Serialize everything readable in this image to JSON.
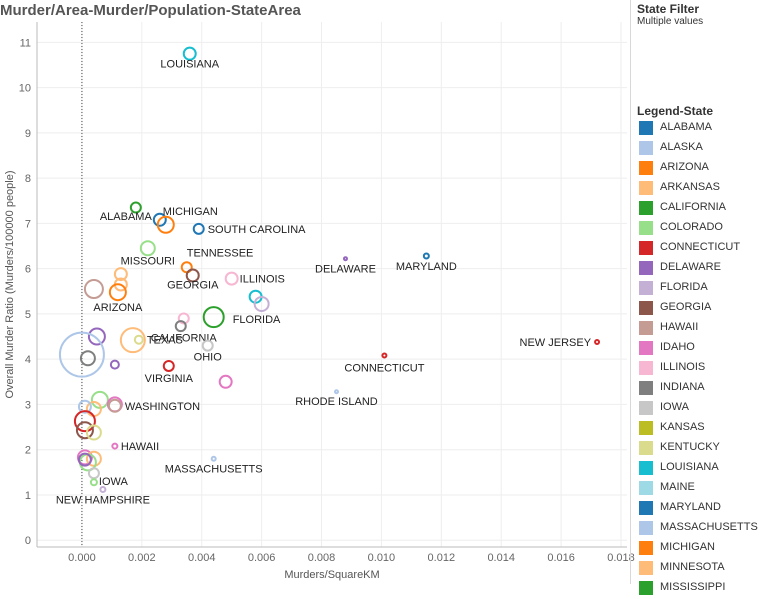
{
  "title": "Murder/Area-Murder/Population-StateArea",
  "filter": {
    "title": "State Filter",
    "value": "Multiple values"
  },
  "legend": {
    "title": "Legend-State",
    "items": [
      {
        "label": "ALABAMA",
        "color": "#1f77b4"
      },
      {
        "label": "ALASKA",
        "color": "#aec7e8"
      },
      {
        "label": "ARIZONA",
        "color": "#ff7f0e"
      },
      {
        "label": "ARKANSAS",
        "color": "#ffbb78"
      },
      {
        "label": "CALIFORNIA",
        "color": "#2ca02c"
      },
      {
        "label": "COLORADO",
        "color": "#98df8a"
      },
      {
        "label": "CONNECTICUT",
        "color": "#d62728"
      },
      {
        "label": "DELAWARE",
        "color": "#9467bd"
      },
      {
        "label": "FLORIDA",
        "color": "#c5b0d5"
      },
      {
        "label": "GEORGIA",
        "color": "#8c564b"
      },
      {
        "label": "HAWAII",
        "color": "#c49c94"
      },
      {
        "label": "IDAHO",
        "color": "#e377c2"
      },
      {
        "label": "ILLINOIS",
        "color": "#f7b6d2"
      },
      {
        "label": "INDIANA",
        "color": "#7f7f7f"
      },
      {
        "label": "IOWA",
        "color": "#c7c7c7"
      },
      {
        "label": "KANSAS",
        "color": "#bcbd22"
      },
      {
        "label": "KENTUCKY",
        "color": "#dbdb8d"
      },
      {
        "label": "LOUISIANA",
        "color": "#17becf"
      },
      {
        "label": "MAINE",
        "color": "#9edae5"
      },
      {
        "label": "MARYLAND",
        "color": "#1f77b4"
      },
      {
        "label": "MASSACHUSETTS",
        "color": "#aec7e8"
      },
      {
        "label": "MICHIGAN",
        "color": "#ff7f0e"
      },
      {
        "label": "MINNESOTA",
        "color": "#ffbb78"
      },
      {
        "label": "MISSISSIPPI",
        "color": "#2ca02c"
      }
    ]
  },
  "chart_data": {
    "type": "scatter",
    "title": "Murder/Area-Murder/Population-StateArea",
    "xlabel": "Murders/SquareKM",
    "ylabel": "Overall Murder Ratio (Murders/100000 people)",
    "xlim": [
      -0.0015,
      0.0182
    ],
    "ylim": [
      -0.15,
      11.45
    ],
    "xticks": [
      "0.000",
      "0.002",
      "0.004",
      "0.006",
      "0.008",
      "0.010",
      "0.012",
      "0.014",
      "0.016",
      "0.018"
    ],
    "xtick_values": [
      0,
      0.002,
      0.004,
      0.006,
      0.008,
      0.01,
      0.012,
      0.014,
      0.016,
      0.018
    ],
    "yticks": [
      "0",
      "1",
      "2",
      "3",
      "4",
      "5",
      "6",
      "7",
      "8",
      "9",
      "10",
      "11"
    ],
    "ytick_values": [
      0,
      1,
      2,
      3,
      4,
      5,
      6,
      7,
      8,
      9,
      10,
      11
    ],
    "grid": true,
    "reference_line_x": 0,
    "legend_position": "right",
    "points": [
      {
        "x": 0.0036,
        "y": 10.75,
        "size": 6,
        "color": "#17becf",
        "label": "LOUISIANA"
      },
      {
        "x": 0.0018,
        "y": 7.35,
        "size": 5,
        "color": "#2ca02c",
        "label": ""
      },
      {
        "x": 0.0026,
        "y": 7.08,
        "size": 6,
        "color": "#1f77b4",
        "label": "ALABAMA"
      },
      {
        "x": 0.0028,
        "y": 6.97,
        "size": 8,
        "color": "#ff7f0e",
        "label": "MICHIGAN"
      },
      {
        "x": 0.0039,
        "y": 6.88,
        "size": 5,
        "color": "#1f77b4",
        "label": "SOUTH CAROLINA"
      },
      {
        "x": 0.0022,
        "y": 6.45,
        "size": 7,
        "color": "#98df8a",
        "label": "MISSOURI"
      },
      {
        "x": 0.0035,
        "y": 6.03,
        "size": 5,
        "color": "#ff7f0e",
        "label": "TENNESSEE"
      },
      {
        "x": 0.0037,
        "y": 5.85,
        "size": 6,
        "color": "#8c564b",
        "label": "GEORGIA"
      },
      {
        "x": 0.005,
        "y": 5.78,
        "size": 6,
        "color": "#f7b6d2",
        "label": "ILLINOIS"
      },
      {
        "x": 0.0088,
        "y": 6.22,
        "size": 1.5,
        "color": "#9467bd",
        "label": "DELAWARE"
      },
      {
        "x": 0.0115,
        "y": 6.28,
        "size": 2.5,
        "color": "#1f77b4",
        "label": "MARYLAND"
      },
      {
        "x": 0.0013,
        "y": 5.88,
        "size": 6,
        "color": "#ffbb78",
        "label": ""
      },
      {
        "x": 0.0013,
        "y": 5.65,
        "size": 6,
        "color": "#ffbb78",
        "label": ""
      },
      {
        "x": 0.0012,
        "y": 5.48,
        "size": 8,
        "color": "#ff7f0e",
        "label": "ARIZONA"
      },
      {
        "x": 0.0004,
        "y": 5.55,
        "size": 9,
        "color": "#c49c94",
        "label": ""
      },
      {
        "x": 0.0058,
        "y": 5.38,
        "size": 6,
        "color": "#17becf",
        "label": ""
      },
      {
        "x": 0.006,
        "y": 5.22,
        "size": 7,
        "color": "#c5b0d5",
        "label": ""
      },
      {
        "x": 0.0044,
        "y": 4.93,
        "size": 10,
        "color": "#2ca02c",
        "label": "FLORIDA"
      },
      {
        "x": 0.0034,
        "y": 4.9,
        "size": 5,
        "color": "#f7b6d2",
        "label": "CALIFORNIA"
      },
      {
        "x": 0.0033,
        "y": 4.73,
        "size": 5,
        "color": "#7f7f7f",
        "label": ""
      },
      {
        "x": 0.0005,
        "y": 4.5,
        "size": 8,
        "color": "#9467bd",
        "label": ""
      },
      {
        "x": 0.0017,
        "y": 4.42,
        "size": 12,
        "color": "#ffbb78",
        "label": ""
      },
      {
        "x": 0.0019,
        "y": 4.43,
        "size": 4,
        "color": "#dbdb8d",
        "label": "TEXAS"
      },
      {
        "x": 0.0042,
        "y": 4.3,
        "size": 5,
        "color": "#c7c7c7",
        "label": "OHIO"
      },
      {
        "x": 0.0,
        "y": 4.1,
        "size": 22,
        "color": "#aec7e8",
        "label": ""
      },
      {
        "x": 0.0002,
        "y": 4.02,
        "size": 7,
        "color": "#7f7f7f",
        "label": ""
      },
      {
        "x": 0.0011,
        "y": 3.88,
        "size": 4,
        "color": "#9467bd",
        "label": ""
      },
      {
        "x": 0.0029,
        "y": 3.85,
        "size": 5,
        "color": "#d62728",
        "label": "VIRGINIA"
      },
      {
        "x": 0.0101,
        "y": 4.08,
        "size": 2,
        "color": "#d62728",
        "label": "CONNECTICUT"
      },
      {
        "x": 0.0172,
        "y": 4.38,
        "size": 2,
        "color": "#d62728",
        "label": "NEW JERSEY"
      },
      {
        "x": 0.0048,
        "y": 3.5,
        "size": 6,
        "color": "#e377c2",
        "label": ""
      },
      {
        "x": 0.0085,
        "y": 3.28,
        "size": 1.5,
        "color": "#aec7e8",
        "label": "RHODE ISLAND"
      },
      {
        "x": 0.0006,
        "y": 3.1,
        "size": 8,
        "color": "#98df8a",
        "label": ""
      },
      {
        "x": 0.0011,
        "y": 3.0,
        "size": 7,
        "color": "#e377c2",
        "label": ""
      },
      {
        "x": 0.0011,
        "y": 2.97,
        "size": 6,
        "color": "#c49c94",
        "label": "WASHINGTON"
      },
      {
        "x": 0.0004,
        "y": 2.9,
        "size": 7,
        "color": "#ffbb78",
        "label": ""
      },
      {
        "x": 0.0001,
        "y": 2.95,
        "size": 6,
        "color": "#aec7e8",
        "label": ""
      },
      {
        "x": 0.0001,
        "y": 2.63,
        "size": 10,
        "color": "#d62728",
        "label": ""
      },
      {
        "x": 0.0001,
        "y": 2.43,
        "size": 8,
        "color": "#8c564b",
        "label": ""
      },
      {
        "x": 0.0004,
        "y": 2.38,
        "size": 7,
        "color": "#dbdb8d",
        "label": ""
      },
      {
        "x": 0.0011,
        "y": 2.08,
        "size": 2.5,
        "color": "#e377c2",
        "label": "HAWAII"
      },
      {
        "x": 0.0001,
        "y": 1.83,
        "size": 7,
        "color": "#e377c2",
        "label": ""
      },
      {
        "x": 0.0004,
        "y": 1.8,
        "size": 7,
        "color": "#ffbb78",
        "label": ""
      },
      {
        "x": 0.0002,
        "y": 1.72,
        "size": 8,
        "color": "#98df8a",
        "label": ""
      },
      {
        "x": 0.0001,
        "y": 1.78,
        "size": 6,
        "color": "#9467bd",
        "label": ""
      },
      {
        "x": 0.0004,
        "y": 1.48,
        "size": 5,
        "color": "#c7c7c7",
        "label": "IOWA"
      },
      {
        "x": 0.0044,
        "y": 1.8,
        "size": 2,
        "color": "#aec7e8",
        "label": "MASSACHUSETTS"
      },
      {
        "x": 0.0004,
        "y": 1.28,
        "size": 3,
        "color": "#98df8a",
        "label": ""
      },
      {
        "x": 0.0007,
        "y": 1.12,
        "size": 2.5,
        "color": "#c5b0d5",
        "label": "NEW HAMPSHIRE"
      }
    ]
  }
}
